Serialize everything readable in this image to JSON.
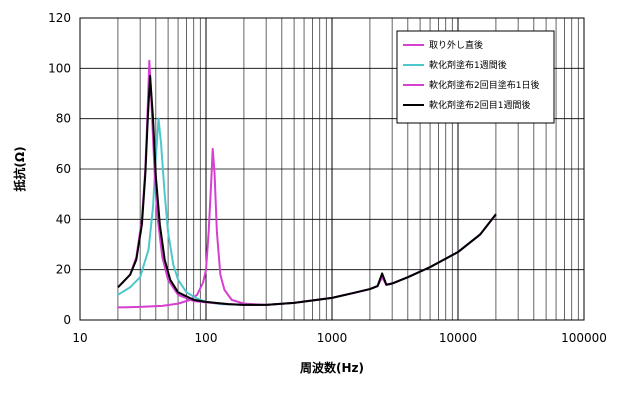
{
  "chart_data": {
    "type": "line",
    "x_scale": "log",
    "xlim": [
      10,
      100000
    ],
    "ylim": [
      0,
      120
    ],
    "xlabel": "周波数(Hz)",
    "ylabel": "抵抗(Ω)",
    "x_ticks": [
      10,
      100,
      1000,
      10000,
      100000
    ],
    "x_tick_labels": [
      "10",
      "100",
      "1000",
      "10000",
      "100000"
    ],
    "y_ticks": [
      0,
      20,
      40,
      60,
      80,
      100,
      120
    ],
    "grid": true,
    "legend_position": "top-right",
    "series": [
      {
        "name": "取り外し直後",
        "color": "#d63fd0",
        "points": [
          [
            20,
            5
          ],
          [
            30,
            5.2
          ],
          [
            45,
            5.6
          ],
          [
            60,
            6.5
          ],
          [
            75,
            8
          ],
          [
            85,
            10
          ],
          [
            95,
            15
          ],
          [
            100,
            20
          ],
          [
            105,
            35
          ],
          [
            110,
            55
          ],
          [
            113,
            68
          ],
          [
            117,
            58
          ],
          [
            122,
            35
          ],
          [
            130,
            18
          ],
          [
            140,
            12
          ],
          [
            160,
            8
          ],
          [
            200,
            6.5
          ],
          [
            300,
            6
          ],
          [
            500,
            6.8
          ],
          [
            1000,
            8.8
          ],
          [
            1500,
            10.8
          ],
          [
            2000,
            12.3
          ],
          [
            2300,
            13.5
          ],
          [
            2500,
            17
          ],
          [
            2700,
            14
          ],
          [
            3000,
            14.5
          ],
          [
            4000,
            17
          ],
          [
            6000,
            21
          ],
          [
            10000,
            27
          ],
          [
            15000,
            34
          ],
          [
            20000,
            42
          ]
        ]
      },
      {
        "name": "軟化剤塗布1週間後",
        "color": "#4cc8cc",
        "points": [
          [
            20,
            10
          ],
          [
            25,
            13
          ],
          [
            30,
            17
          ],
          [
            35,
            28
          ],
          [
            38,
            45
          ],
          [
            40,
            65
          ],
          [
            42,
            80
          ],
          [
            44,
            70
          ],
          [
            47,
            50
          ],
          [
            50,
            35
          ],
          [
            55,
            22
          ],
          [
            60,
            16
          ],
          [
            70,
            11
          ],
          [
            85,
            8.5
          ],
          [
            100,
            7.2
          ],
          [
            130,
            6.3
          ],
          [
            200,
            6
          ],
          [
            300,
            6
          ],
          [
            500,
            6.8
          ],
          [
            1000,
            8.8
          ],
          [
            1500,
            10.8
          ],
          [
            2000,
            12.3
          ],
          [
            2300,
            13.5
          ],
          [
            2500,
            18
          ],
          [
            2700,
            14
          ],
          [
            3000,
            14.5
          ],
          [
            4000,
            17
          ],
          [
            6000,
            21
          ],
          [
            10000,
            27
          ],
          [
            15000,
            34
          ],
          [
            20000,
            42
          ]
        ]
      },
      {
        "name": "軟化剤塗布2回目塗布1日後",
        "color": "#d63fd0",
        "points": [
          [
            20,
            13
          ],
          [
            25,
            18
          ],
          [
            28,
            25
          ],
          [
            31,
            40
          ],
          [
            33,
            60
          ],
          [
            34.5,
            85
          ],
          [
            35.5,
            103
          ],
          [
            37,
            85
          ],
          [
            39,
            60
          ],
          [
            41,
            42
          ],
          [
            45,
            25
          ],
          [
            50,
            16
          ],
          [
            60,
            10
          ],
          [
            80,
            7.5
          ],
          [
            100,
            7
          ],
          [
            150,
            6.3
          ],
          [
            200,
            6
          ],
          [
            300,
            6
          ],
          [
            500,
            6.8
          ],
          [
            1000,
            8.8
          ],
          [
            1500,
            10.8
          ],
          [
            2000,
            12.3
          ],
          [
            2300,
            13.5
          ],
          [
            2500,
            17.5
          ],
          [
            2700,
            14
          ],
          [
            3000,
            14.5
          ],
          [
            4000,
            17
          ],
          [
            6000,
            21
          ],
          [
            10000,
            27
          ],
          [
            15000,
            34
          ],
          [
            20000,
            42
          ]
        ]
      },
      {
        "name": "軟化剤塗布2回目1週間後",
        "color": "#000000",
        "points": [
          [
            20,
            13
          ],
          [
            25,
            18
          ],
          [
            28,
            24
          ],
          [
            31,
            38
          ],
          [
            33,
            58
          ],
          [
            34.5,
            80
          ],
          [
            36,
            97
          ],
          [
            38,
            80
          ],
          [
            40,
            57
          ],
          [
            43,
            38
          ],
          [
            47,
            24
          ],
          [
            52,
            16
          ],
          [
            60,
            11
          ],
          [
            80,
            8
          ],
          [
            100,
            7.2
          ],
          [
            150,
            6.3
          ],
          [
            200,
            6
          ],
          [
            300,
            6
          ],
          [
            500,
            6.8
          ],
          [
            1000,
            8.8
          ],
          [
            1500,
            10.8
          ],
          [
            2000,
            12.3
          ],
          [
            2300,
            13.5
          ],
          [
            2500,
            18.5
          ],
          [
            2700,
            14
          ],
          [
            3000,
            14.5
          ],
          [
            4000,
            17
          ],
          [
            6000,
            21
          ],
          [
            10000,
            27
          ],
          [
            15000,
            34
          ],
          [
            20000,
            42
          ]
        ]
      }
    ]
  }
}
